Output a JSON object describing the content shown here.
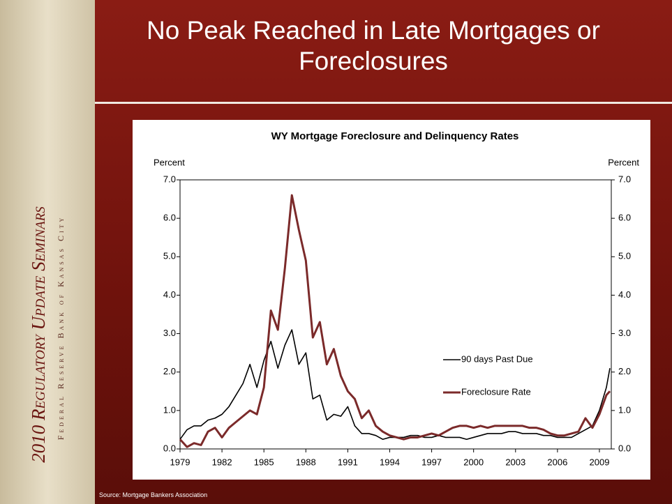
{
  "slide": {
    "title": "No Peak Reached in Late Mortgages or Foreclosures",
    "sidebar_title": "2010 Regulatory Update Seminars",
    "sidebar_subtitle": "Federal Reserve Bank of Kansas City",
    "source": "Source: Mortgage Bankers Association"
  },
  "chart_data": {
    "type": "line",
    "title": "WY Mortgage Foreclosure and Delinquency Rates",
    "y_label": "Percent",
    "y2_label": "Percent",
    "x": [
      1979,
      1979.5,
      1980,
      1980.5,
      1981,
      1981.5,
      1982,
      1982.5,
      1983,
      1983.5,
      1984,
      1984.5,
      1985,
      1985.5,
      1986,
      1986.5,
      1987,
      1987.5,
      1988,
      1988.5,
      1989,
      1989.5,
      1990,
      1990.5,
      1991,
      1991.5,
      1992,
      1992.5,
      1993,
      1993.5,
      1994,
      1994.5,
      1995,
      1995.5,
      1996,
      1996.5,
      1997,
      1997.5,
      1998,
      1998.5,
      1999,
      1999.5,
      2000,
      2000.5,
      2001,
      2001.5,
      2002,
      2002.5,
      2003,
      2003.5,
      2004,
      2004.5,
      2005,
      2005.5,
      2006,
      2006.5,
      2007,
      2007.5,
      2008,
      2008.5,
      2009,
      2009.5,
      2009.75
    ],
    "series": [
      {
        "name": "90 days Past Due",
        "color": "#000000",
        "values": [
          0.25,
          0.5,
          0.6,
          0.6,
          0.75,
          0.8,
          0.9,
          1.1,
          1.4,
          1.7,
          2.2,
          1.6,
          2.3,
          2.8,
          2.1,
          2.7,
          3.1,
          2.2,
          2.5,
          1.3,
          1.4,
          0.75,
          0.9,
          0.85,
          1.1,
          0.6,
          0.4,
          0.4,
          0.35,
          0.25,
          0.3,
          0.3,
          0.3,
          0.35,
          0.35,
          0.3,
          0.3,
          0.35,
          0.3,
          0.3,
          0.3,
          0.25,
          0.3,
          0.35,
          0.4,
          0.4,
          0.4,
          0.45,
          0.45,
          0.4,
          0.4,
          0.4,
          0.35,
          0.35,
          0.3,
          0.3,
          0.3,
          0.4,
          0.5,
          0.6,
          1.0,
          1.6,
          2.1
        ]
      },
      {
        "name": "Foreclosure Rate",
        "color": "#7b2a2a",
        "values": [
          0.25,
          0.05,
          0.15,
          0.1,
          0.45,
          0.55,
          0.3,
          0.55,
          0.7,
          0.85,
          1.0,
          0.9,
          1.6,
          3.6,
          3.1,
          4.7,
          6.6,
          5.7,
          4.9,
          2.9,
          3.3,
          2.2,
          2.6,
          1.9,
          1.5,
          1.3,
          0.8,
          1.0,
          0.6,
          0.45,
          0.35,
          0.3,
          0.25,
          0.3,
          0.3,
          0.35,
          0.4,
          0.35,
          0.45,
          0.55,
          0.6,
          0.6,
          0.55,
          0.6,
          0.55,
          0.6,
          0.6,
          0.6,
          0.6,
          0.6,
          0.55,
          0.55,
          0.5,
          0.4,
          0.35,
          0.35,
          0.4,
          0.45,
          0.8,
          0.55,
          0.9,
          1.4,
          1.5
        ]
      }
    ],
    "xlim": [
      1979,
      2009.85
    ],
    "xticks": [
      1979,
      1982,
      1985,
      1988,
      1991,
      1994,
      1997,
      2000,
      2003,
      2006,
      2009
    ],
    "ylim": [
      0,
      7
    ],
    "yticks": [
      {
        "value": 0,
        "label": "0.0"
      },
      {
        "value": 1,
        "label": "1.0"
      },
      {
        "value": 2,
        "label": "2.0"
      },
      {
        "value": 3,
        "label": "3.0"
      },
      {
        "value": 4,
        "label": "4.0"
      },
      {
        "value": 5,
        "label": "5.0"
      },
      {
        "value": 6,
        "label": "6.0"
      },
      {
        "value": 7,
        "label": "7.0"
      }
    ],
    "y2lim": [
      0,
      7
    ],
    "y2ticks": [
      {
        "value": 0,
        "label": "0.0"
      },
      {
        "value": 1,
        "label": "1.0"
      },
      {
        "value": 2,
        "label": "2.0"
      },
      {
        "value": 3,
        "label": "3.0"
      },
      {
        "value": 4,
        "label": "4.0"
      },
      {
        "value": 5,
        "label": "5.0"
      },
      {
        "value": 6,
        "label": "6.0"
      },
      {
        "value": 7,
        "label": "7.0"
      }
    ],
    "grid": false
  }
}
